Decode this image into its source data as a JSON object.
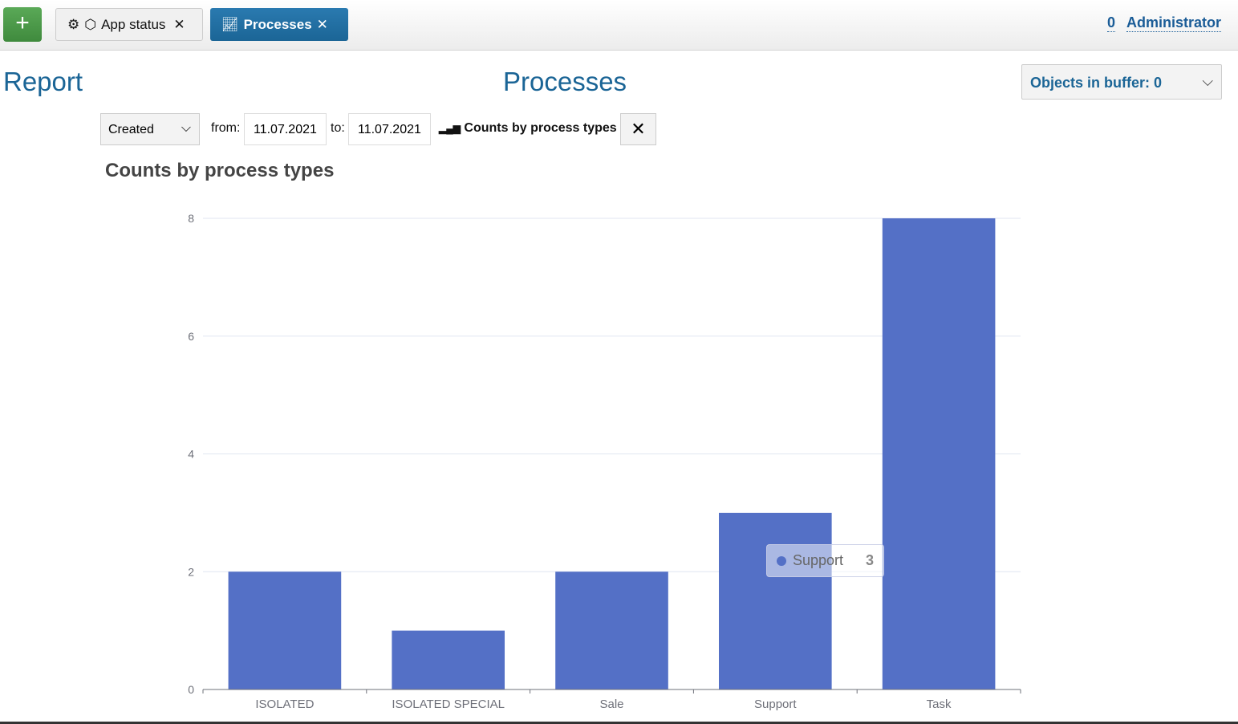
{
  "topbar": {
    "add_icon": "plus-icon",
    "tabs": [
      {
        "label": "App status",
        "icons": [
          "gear-icon",
          "cube-icon"
        ]
      },
      {
        "label": "Processes",
        "icons": [
          "chart-line-icon"
        ],
        "active": true
      }
    ],
    "user_count": "0",
    "user_name": "Administrator"
  },
  "page": {
    "report": "Report",
    "title": "Processes",
    "buffer": "Objects in buffer: 0"
  },
  "filter": {
    "field": "Created",
    "from_label": "from:",
    "from": "11.07.2021",
    "to_label": "to:",
    "to": "11.07.2021",
    "report_link": "Counts by process types"
  },
  "chart_data": {
    "type": "bar",
    "title": "Counts by process types",
    "categories": [
      "ISOLATED",
      "ISOLATED SPECIAL",
      "Sale",
      "Support",
      "Task"
    ],
    "values": [
      2,
      1,
      2,
      3,
      8
    ],
    "ylim": [
      0,
      8
    ],
    "yticks": [
      0,
      2,
      4,
      6,
      8
    ],
    "grid": true,
    "color": "#5470c6",
    "tooltip": {
      "name": "Support",
      "value": "3"
    }
  }
}
